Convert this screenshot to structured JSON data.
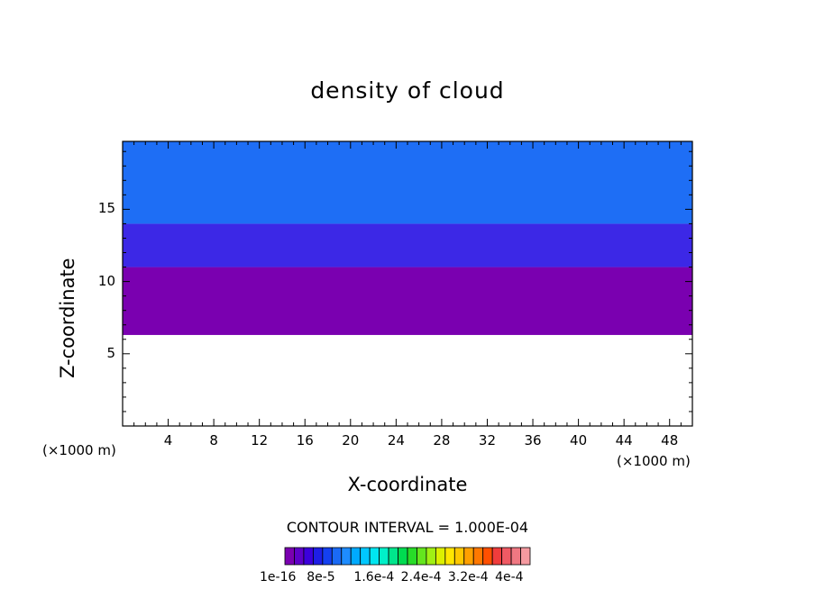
{
  "chart_data": {
    "type": "heatmap",
    "title": "density of cloud",
    "xlabel": "X-coordinate",
    "ylabel": "Z-coordinate",
    "x_unit": "(×1000 m)",
    "y_unit": "(×1000 m)",
    "xlim": [
      0,
      50
    ],
    "ylim": [
      0,
      19.7
    ],
    "x_ticks": [
      4,
      8,
      12,
      16,
      20,
      24,
      28,
      32,
      36,
      40,
      44,
      48
    ],
    "y_ticks": [
      5,
      10,
      15
    ],
    "contour_interval_text": "CONTOUR INTERVAL = 1.000E-04",
    "colorbar": {
      "labels": [
        "1e-16",
        "8e-5",
        "1.6e-4",
        "2.4e-4",
        "3.2e-4",
        "4e-4"
      ],
      "colors": [
        "#7a00b0",
        "#5e00c8",
        "#3c00dc",
        "#1e1ee6",
        "#1440f0",
        "#1a6af5",
        "#1e8cff",
        "#00aaff",
        "#00c8ff",
        "#00e6f0",
        "#00f0c8",
        "#00e68c",
        "#00dc50",
        "#28dc28",
        "#64e61e",
        "#a0f014",
        "#dcf000",
        "#ffe600",
        "#ffc800",
        "#ffa000",
        "#ff7800",
        "#ff5000",
        "#f03c3c",
        "#f05a64",
        "#f07882",
        "#f59aa0"
      ]
    },
    "layers": [
      {
        "name": "",
        "color": "#7a00b0",
        "z_bottom": 6.3,
        "z_top": 11
      },
      {
        "name": "",
        "color": "#3c28e6",
        "z_bottom": 11,
        "z_top": 14
      },
      {
        "name": "",
        "color": "#1e6ef5",
        "z_bottom": 14,
        "z_top": 19.7
      }
    ]
  }
}
